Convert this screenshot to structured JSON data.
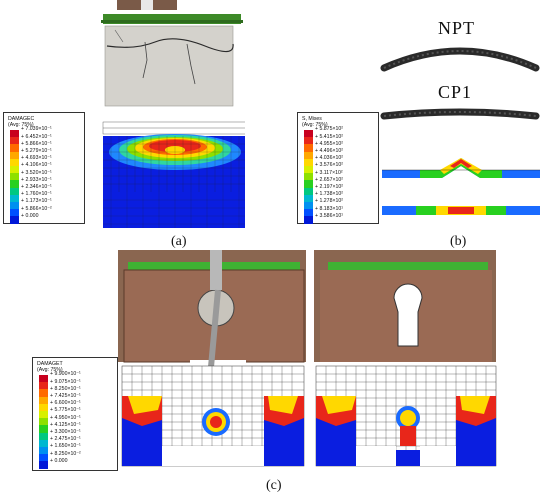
{
  "panels": {
    "a": "(a)",
    "b": "(b)",
    "c": "(c)"
  },
  "labels": {
    "npt": "NPT",
    "cp1": "CP1"
  },
  "legends": {
    "damagec": {
      "title": "DAMAGEC",
      "subtitle": "(Avg: 75%)",
      "values": [
        "+ 7.039×10⁻¹",
        "+ 6.452×10⁻¹",
        "+ 5.866×10⁻¹",
        "+ 5.279×10⁻¹",
        "+ 4.693×10⁻¹",
        "+ 4.106×10⁻¹",
        "+ 3.520×10⁻¹",
        "+ 2.933×10⁻¹",
        "+ 2.346×10⁻¹",
        "+ 1.760×10⁻¹",
        "+ 1.173×10⁻¹",
        "+ 5.866×10⁻²",
        "+ 0.000"
      ]
    },
    "mises": {
      "title": "S, Mises",
      "subtitle": "(Avg: 75%)",
      "values": [
        "+ 5.875×10²",
        "+ 5.415×10²",
        "+ 4.955×10²",
        "+ 4.496×10²",
        "+ 4.036×10²",
        "+ 3.576×10²",
        "+ 3.117×10²",
        "+ 2.657×10²",
        "+ 2.197×10²",
        "+ 1.738×10²",
        "+ 1.278×10²",
        "+ 8.183×10¹",
        "+ 3.586×10¹"
      ]
    },
    "damaget": {
      "title": "DAMAGET",
      "subtitle": "(Avg: 75%)",
      "values": [
        "+ 9.900×10⁻¹",
        "+ 9.075×10⁻¹",
        "+ 8.250×10⁻¹",
        "+ 7.425×10⁻¹",
        "+ 6.600×10⁻¹",
        "+ 5.775×10⁻¹",
        "+ 4.950×10⁻¹",
        "+ 4.125×10⁻¹",
        "+ 3.300×10⁻¹",
        "+ 2.475×10⁻¹",
        "+ 1.650×10⁻¹",
        "+ 8.250×10⁻²",
        "+ 0.000"
      ]
    }
  },
  "scale_colors": [
    "#c8001e",
    "#e8261a",
    "#ff6a00",
    "#ffa800",
    "#ffd800",
    "#d8f000",
    "#8ee000",
    "#28d020",
    "#00c880",
    "#00b8d0",
    "#0090f0",
    "#0050ff",
    "#0018d8"
  ]
}
